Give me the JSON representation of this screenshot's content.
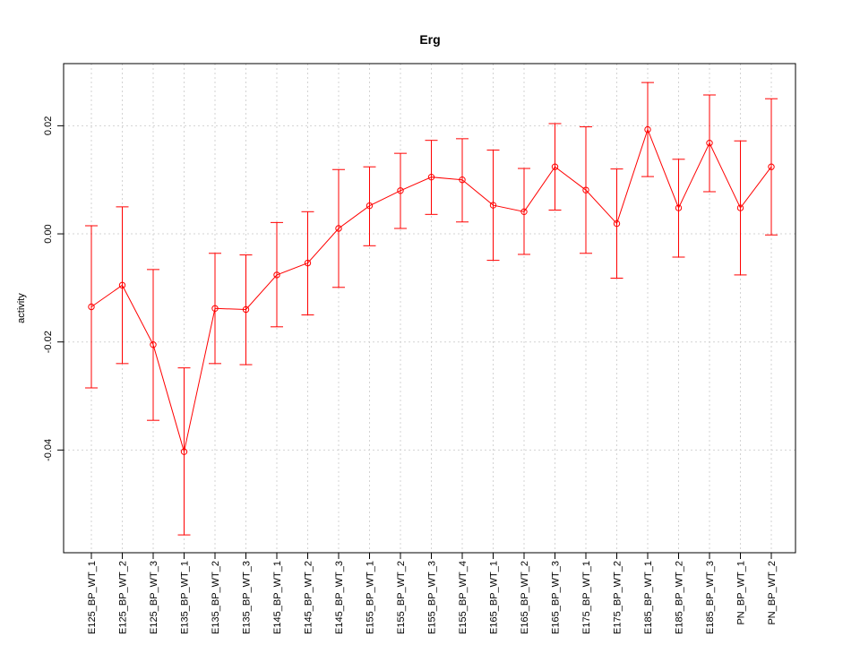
{
  "chart_data": {
    "type": "line",
    "title": "Erg",
    "xlabel": "",
    "ylabel": "activity",
    "categories": [
      "E125_BP_WT_1",
      "E125_BP_WT_2",
      "E125_BP_WT_3",
      "E135_BP_WT_1",
      "E135_BP_WT_2",
      "E135_BP_WT_3",
      "E145_BP_WT_1",
      "E145_BP_WT_2",
      "E145_BP_WT_3",
      "E155_BP_WT_1",
      "E155_BP_WT_2",
      "E155_BP_WT_3",
      "E155_BP_WT_4",
      "E165_BP_WT_1",
      "E165_BP_WT_2",
      "E165_BP_WT_3",
      "E175_BP_WT_1",
      "E175_BP_WT_2",
      "E185_BP_WT_1",
      "E185_BP_WT_2",
      "E185_BP_WT_3",
      "PN_BP_WT_1",
      "PN_BP_WT_2"
    ],
    "series": [
      {
        "values": [
          -0.0135,
          -0.0095,
          -0.0205,
          -0.0403,
          -0.0138,
          -0.014,
          -0.0076,
          -0.0054,
          0.001,
          0.0052,
          0.008,
          0.0105,
          0.01,
          0.0053,
          0.0041,
          0.0124,
          0.0081,
          0.0019,
          0.0193,
          0.0048,
          0.0168,
          0.0048,
          0.0124
        ],
        "upper": [
          0.0015,
          0.005,
          -0.0066,
          -0.0248,
          -0.0036,
          -0.0039,
          0.0021,
          0.0041,
          0.0119,
          0.0124,
          0.0149,
          0.0173,
          0.0176,
          0.0155,
          0.0121,
          0.0204,
          0.0198,
          0.012,
          0.028,
          0.0138,
          0.0257,
          0.0172,
          0.025
        ],
        "lower": [
          -0.0285,
          -0.024,
          -0.0345,
          -0.0557,
          -0.024,
          -0.0242,
          -0.0172,
          -0.015,
          -0.0099,
          -0.0022,
          0.001,
          0.0036,
          0.0022,
          -0.0049,
          -0.0038,
          0.0044,
          -0.0036,
          -0.0082,
          0.0106,
          -0.0043,
          0.0078,
          -0.0076,
          -0.0002
        ]
      }
    ],
    "yticks": [
      -0.04,
      -0.02,
      0.0,
      0.02
    ],
    "ytick_labels": [
      "-0.04",
      "-0.02",
      "0.00",
      "0.02"
    ],
    "ylim": [
      -0.059,
      0.0315
    ],
    "grid": true,
    "colors": {
      "series": "#ff0000",
      "grid": "#d3d3d3",
      "axis": "#000000"
    }
  }
}
